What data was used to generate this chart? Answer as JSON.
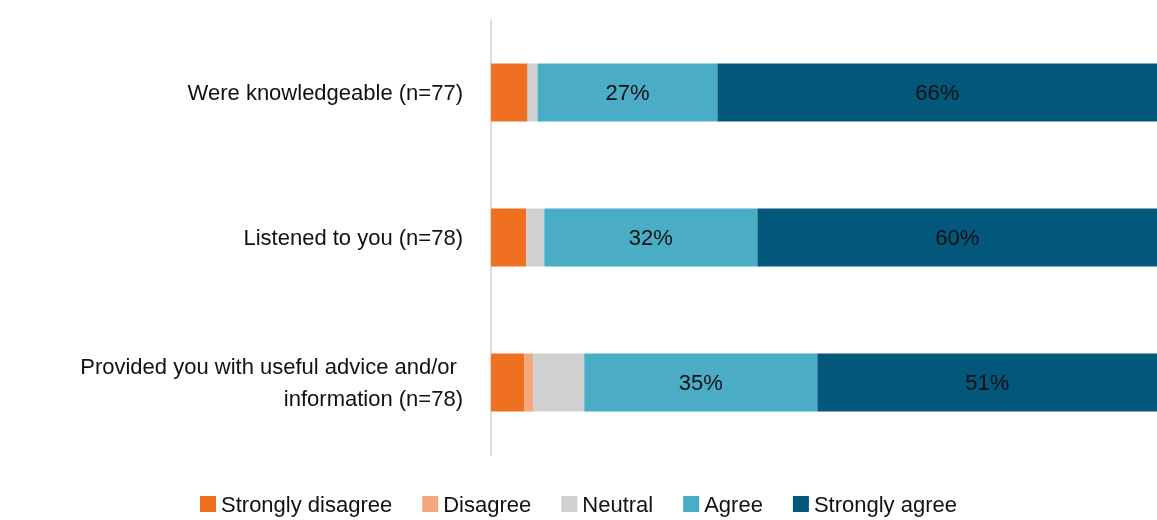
{
  "chart_data": {
    "type": "bar",
    "orientation": "horizontal",
    "stacked": true,
    "legend": "bottom",
    "tick_labels": "y",
    "xlim": [
      0,
      100
    ],
    "categories": [
      "Were knowledgeable (n=77)",
      "Listened to you (n=78)",
      "Provided you with useful advice and/or information (n=78)"
    ],
    "series": [
      {
        "name": "Strongly disagree",
        "color": "#f07022",
        "values": [
          5.5,
          5.3,
          5
        ]
      },
      {
        "name": "Disagree",
        "color": "#f4a77c",
        "values": [
          0,
          0,
          1.3
        ]
      },
      {
        "name": "Neutral",
        "color": "#d0d0d0",
        "values": [
          1.5,
          2.7,
          7.7
        ]
      },
      {
        "name": "Agree",
        "color": "#4bacc6",
        "values": [
          27,
          32,
          35
        ],
        "value_labels": [
          "27%",
          "32%",
          "35%"
        ]
      },
      {
        "name": "Strongly agree",
        "color": "#03577a",
        "values": [
          66,
          60,
          51
        ],
        "value_labels": [
          "66%",
          "60%",
          "51%"
        ]
      }
    ]
  }
}
